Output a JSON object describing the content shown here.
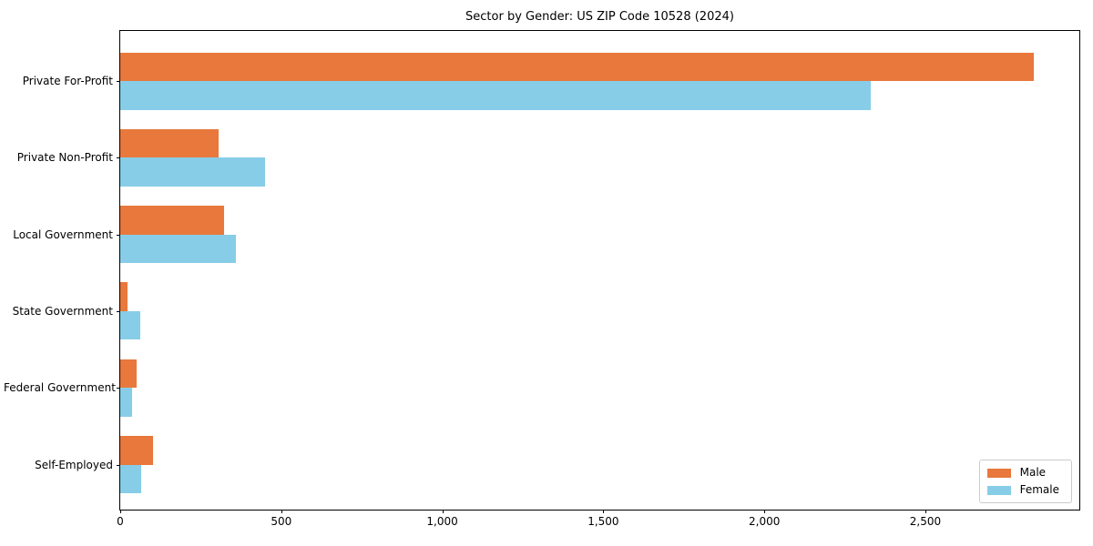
{
  "chart_data": {
    "type": "bar",
    "orientation": "horizontal",
    "title": "Sector by Gender: US ZIP Code 10528 (2024)",
    "categories": [
      "Private For-Profit",
      "Private Non-Profit",
      "Local Government",
      "State Government",
      "Federal Government",
      "Self-Employed"
    ],
    "series": [
      {
        "name": "Male",
        "color": "#e8783c",
        "values": [
          2836,
          306,
          323,
          23,
          50,
          103
        ]
      },
      {
        "name": "Female",
        "color": "#87cde8",
        "values": [
          2330,
          450,
          358,
          61,
          38,
          64
        ]
      }
    ],
    "xlabel": "",
    "ylabel": "",
    "xlim": [
      0,
      2978
    ],
    "x_ticks": [
      0,
      500,
      1000,
      1500,
      2000,
      2500
    ],
    "x_tick_labels": [
      "0",
      "500",
      "1,000",
      "1,500",
      "2,000",
      "2,500"
    ],
    "grid": false,
    "legend_position": "lower right",
    "background_color": "#ffffff",
    "spine_color": "#000000"
  }
}
